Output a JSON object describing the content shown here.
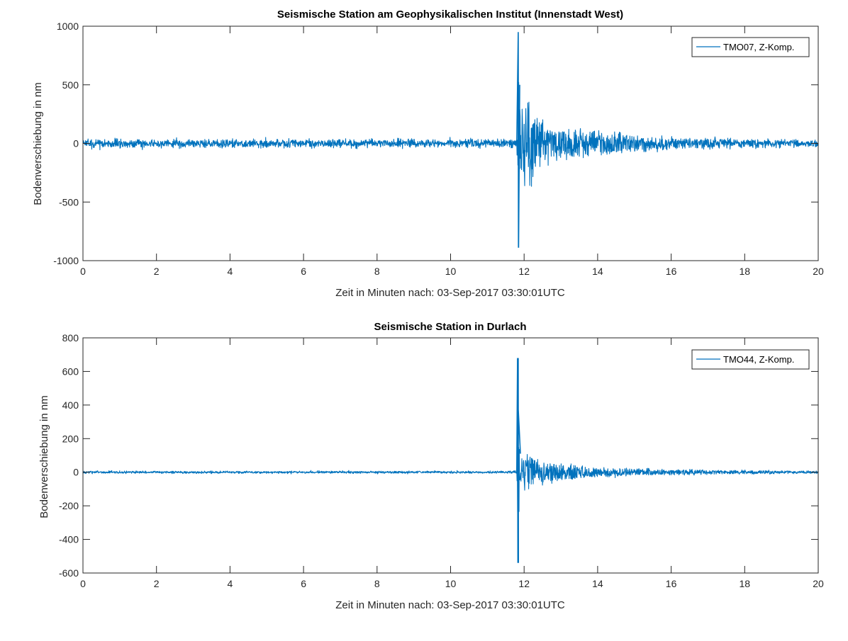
{
  "figure": {
    "background": "#ffffff",
    "line_color": "#0072bd",
    "axis_color": "#262626"
  },
  "chart_data": [
    {
      "type": "line",
      "title": "Seismische Station am Geophysikalischen Institut (Innenstadt West)",
      "xlabel": "Zeit in Minuten nach: 03-Sep-2017 03:30:01UTC",
      "ylabel": "Bodenverschiebung in nm",
      "xlim": [
        0,
        20
      ],
      "ylim": [
        -1000,
        1000
      ],
      "xticks": [
        0,
        2,
        4,
        6,
        8,
        10,
        12,
        14,
        16,
        18,
        20
      ],
      "yticks": [
        -1000,
        -500,
        0,
        500,
        1000
      ],
      "grid": false,
      "legend": {
        "position": "upper right",
        "entries": [
          "TMO07, Z-Komp."
        ]
      },
      "series": [
        {
          "name": "TMO07, Z-Komp.",
          "color": "#0072bd",
          "description": "Seismogram: background noise ~±40 nm from 0 to 11.8 min, P-wave onset at ~11.8 min with peak ~950 nm and trough ~-890 nm, coda decaying to noise level by ~17 min",
          "noise_amplitude": 35,
          "event_onset_min": 11.8,
          "peak_max": 950,
          "peak_min": -890,
          "key_points": [
            {
              "x": 0,
              "y": 0
            },
            {
              "x": 0.3,
              "y": 45
            },
            {
              "x": 3.4,
              "y": 40
            },
            {
              "x": 11.8,
              "y": 0
            },
            {
              "x": 11.84,
              "y": 950
            },
            {
              "x": 11.85,
              "y": -890
            },
            {
              "x": 11.88,
              "y": 500
            },
            {
              "x": 12.0,
              "y": 420
            },
            {
              "x": 12.1,
              "y": -420
            },
            {
              "x": 12.2,
              "y": 450
            },
            {
              "x": 12.3,
              "y": 260
            },
            {
              "x": 12.7,
              "y": 170
            },
            {
              "x": 13.3,
              "y": 160
            },
            {
              "x": 14.0,
              "y": 120
            },
            {
              "x": 15.0,
              "y": 80
            },
            {
              "x": 16.0,
              "y": 60
            },
            {
              "x": 18.0,
              "y": 40
            },
            {
              "x": 20.0,
              "y": 30
            }
          ]
        }
      ]
    },
    {
      "type": "line",
      "title": "Seismische Station in Durlach",
      "xlabel": "Zeit in Minuten nach: 03-Sep-2017 03:30:01UTC",
      "ylabel": "Bodenverschiebung in nm",
      "xlim": [
        0,
        20
      ],
      "ylim": [
        -600,
        800
      ],
      "xticks": [
        0,
        2,
        4,
        6,
        8,
        10,
        12,
        14,
        16,
        18,
        20
      ],
      "yticks": [
        -600,
        -400,
        -200,
        0,
        200,
        400,
        600,
        800
      ],
      "grid": false,
      "legend": {
        "position": "upper right",
        "entries": [
          "TMO44, Z-Komp."
        ]
      },
      "series": [
        {
          "name": "TMO44, Z-Komp.",
          "color": "#0072bd",
          "description": "Seismogram: very low background noise ~±8 nm from 0 to 11.8 min, P-wave onset at ~11.8 min with peak ~680 nm and trough ~-540 nm, coda decaying to noise level by ~18 min",
          "noise_amplitude": 7,
          "event_onset_min": 11.8,
          "peak_max": 680,
          "peak_min": -540,
          "key_points": [
            {
              "x": 0,
              "y": 0
            },
            {
              "x": 11.8,
              "y": 0
            },
            {
              "x": 11.82,
              "y": 680
            },
            {
              "x": 11.83,
              "y": -540
            },
            {
              "x": 11.84,
              "y": 380
            },
            {
              "x": 11.9,
              "y": 110
            },
            {
              "x": 12.1,
              "y": -120
            },
            {
              "x": 12.5,
              "y": 80
            },
            {
              "x": 13.0,
              "y": 60
            },
            {
              "x": 14.0,
              "y": 35
            },
            {
              "x": 15.0,
              "y": 25
            },
            {
              "x": 16.0,
              "y": 20
            },
            {
              "x": 18.0,
              "y": 12
            },
            {
              "x": 20.0,
              "y": 8
            }
          ]
        }
      ]
    }
  ]
}
